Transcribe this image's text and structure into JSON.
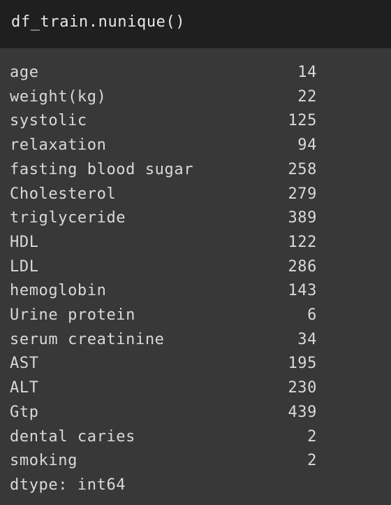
{
  "input": {
    "code": "df_train.nunique()"
  },
  "output": {
    "rows": [
      {
        "label": "age",
        "value": "14"
      },
      {
        "label": "weight(kg)",
        "value": "22"
      },
      {
        "label": "systolic",
        "value": "125"
      },
      {
        "label": "relaxation",
        "value": "94"
      },
      {
        "label": "fasting blood sugar",
        "value": "258"
      },
      {
        "label": "Cholesterol",
        "value": "279"
      },
      {
        "label": "triglyceride",
        "value": "389"
      },
      {
        "label": "HDL",
        "value": "122"
      },
      {
        "label": "LDL",
        "value": "286"
      },
      {
        "label": "hemoglobin",
        "value": "143"
      },
      {
        "label": "Urine protein",
        "value": "6"
      },
      {
        "label": "serum creatinine",
        "value": "34"
      },
      {
        "label": "AST",
        "value": "195"
      },
      {
        "label": "ALT",
        "value": "230"
      },
      {
        "label": "Gtp",
        "value": "439"
      },
      {
        "label": "dental caries",
        "value": "2"
      },
      {
        "label": "smoking",
        "value": "2"
      }
    ],
    "dtype": "dtype: int64"
  }
}
